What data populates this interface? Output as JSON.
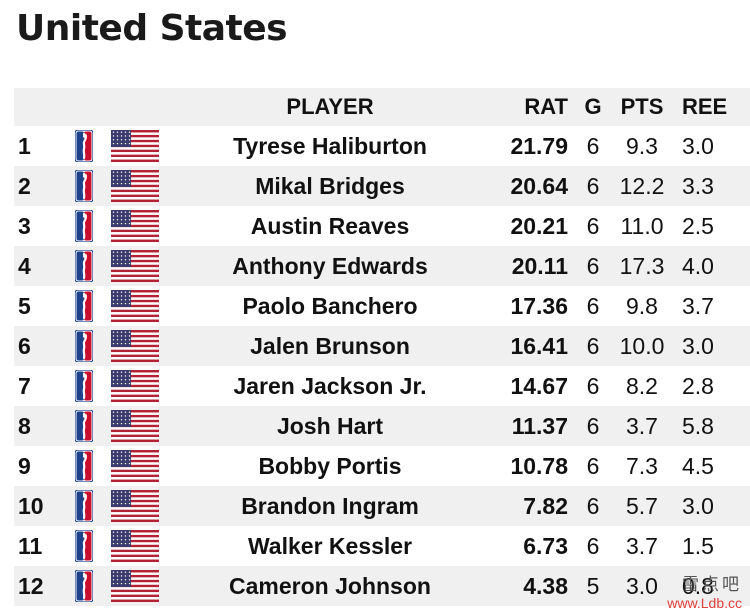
{
  "page": {
    "title": "United States"
  },
  "table": {
    "columns": {
      "player": "PLAYER",
      "rat": "RAT",
      "g": "G",
      "pts": "PTS",
      "reb": "REE"
    },
    "rows": [
      {
        "rank": "1",
        "player": "Tyrese Haliburton",
        "rat": "21.79",
        "g": "6",
        "pts": "9.3",
        "reb": "3.0"
      },
      {
        "rank": "2",
        "player": "Mikal Bridges",
        "rat": "20.64",
        "g": "6",
        "pts": "12.2",
        "reb": "3.3"
      },
      {
        "rank": "3",
        "player": "Austin Reaves",
        "rat": "20.21",
        "g": "6",
        "pts": "11.0",
        "reb": "2.5"
      },
      {
        "rank": "4",
        "player": "Anthony Edwards",
        "rat": "20.11",
        "g": "6",
        "pts": "17.3",
        "reb": "4.0"
      },
      {
        "rank": "5",
        "player": "Paolo Banchero",
        "rat": "17.36",
        "g": "6",
        "pts": "9.8",
        "reb": "3.7"
      },
      {
        "rank": "6",
        "player": "Jalen Brunson",
        "rat": "16.41",
        "g": "6",
        "pts": "10.0",
        "reb": "3.0"
      },
      {
        "rank": "7",
        "player": "Jaren Jackson Jr.",
        "rat": "14.67",
        "g": "6",
        "pts": "8.2",
        "reb": "2.8"
      },
      {
        "rank": "8",
        "player": "Josh Hart",
        "rat": "11.37",
        "g": "6",
        "pts": "3.7",
        "reb": "5.8"
      },
      {
        "rank": "9",
        "player": "Bobby Portis",
        "rat": "10.78",
        "g": "6",
        "pts": "7.3",
        "reb": "4.5"
      },
      {
        "rank": "10",
        "player": "Brandon Ingram",
        "rat": "7.82",
        "g": "6",
        "pts": "5.7",
        "reb": "3.0"
      },
      {
        "rank": "11",
        "player": "Walker Kessler",
        "rat": "6.73",
        "g": "6",
        "pts": "3.7",
        "reb": "1.5"
      },
      {
        "rank": "12",
        "player": "Cameron Johnson",
        "rat": "4.38",
        "g": "5",
        "pts": "3.0",
        "reb": "0.8"
      }
    ]
  },
  "icons": {
    "league": "league-logo-icon",
    "country": "us-flag-icon"
  },
  "colors": {
    "row_shade": "#f0f0f0",
    "logo_blue": "#1d428a",
    "logo_red": "#c8102e",
    "flag_red": "#b22234",
    "flag_blue": "#3c3b6e"
  },
  "watermark": {
    "text": "雷点吧",
    "url": "www.Ldb.cc"
  }
}
